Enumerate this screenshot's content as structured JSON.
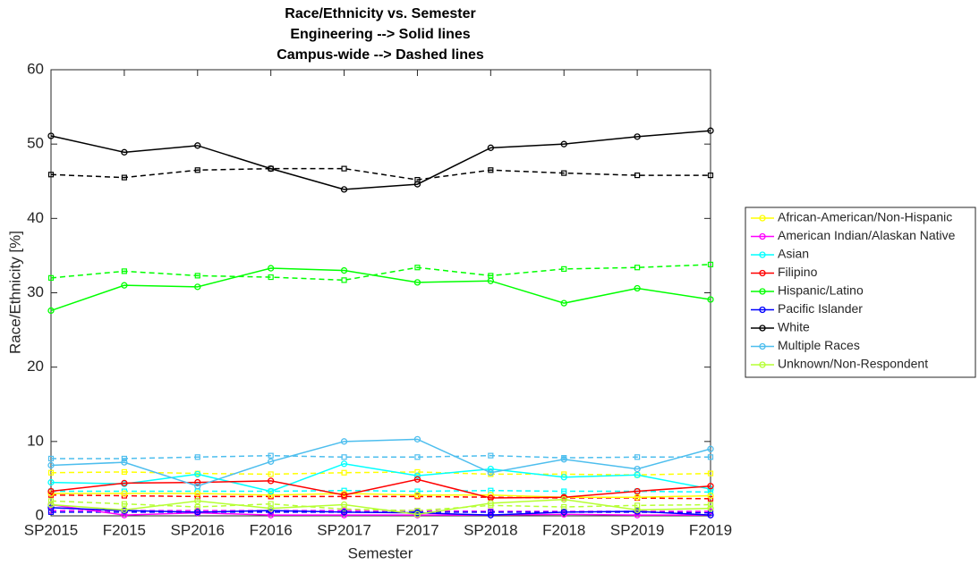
{
  "chart_data": {
    "type": "line",
    "title": [
      "Race/Ethnicity vs. Semester",
      "Engineering --> Solid lines",
      "Campus-wide --> Dashed lines"
    ],
    "xlabel": "Semester",
    "ylabel": "Race/Ethnicity [%]",
    "categories": [
      "SP2015",
      "F2015",
      "SP2016",
      "F2016",
      "SP2017",
      "F2017",
      "SP2018",
      "F2018",
      "SP2019",
      "F2019"
    ],
    "ylim": [
      0,
      60
    ],
    "yticks": [
      0,
      10,
      20,
      30,
      40,
      50,
      60
    ],
    "series": [
      {
        "name": "African-American/Non-Hispanic",
        "color": "#ffff00",
        "values": [
          3.0,
          3.0,
          3.0,
          2.8,
          3.0,
          2.8,
          2.8,
          2.5,
          2.5,
          2.7
        ],
        "campus_values": [
          5.8,
          5.9,
          5.7,
          5.6,
          5.8,
          5.9,
          5.6,
          5.6,
          5.5,
          5.7
        ]
      },
      {
        "name": "American Indian/Alaskan Native",
        "color": "#ff00ff",
        "values": [
          1.5,
          0.1,
          0.4,
          0.1,
          0.1,
          0.1,
          0.1,
          0.2,
          0.1,
          0.1
        ],
        "campus_values": [
          0.7,
          0.7,
          0.7,
          0.7,
          0.7,
          0.7,
          0.6,
          0.6,
          0.6,
          0.6
        ]
      },
      {
        "name": "Asian",
        "color": "#00ffff",
        "values": [
          4.5,
          4.3,
          5.6,
          3.3,
          7.0,
          5.4,
          6.3,
          5.2,
          5.5,
          3.6
        ],
        "campus_values": [
          3.3,
          3.3,
          3.3,
          3.3,
          3.4,
          3.3,
          3.4,
          3.3,
          3.3,
          3.2
        ]
      },
      {
        "name": "Filipino",
        "color": "#ff0000",
        "values": [
          3.3,
          4.4,
          4.5,
          4.7,
          2.8,
          4.9,
          2.4,
          2.5,
          3.3,
          4.0
        ],
        "campus_values": [
          2.8,
          2.7,
          2.6,
          2.6,
          2.6,
          2.6,
          2.5,
          2.4,
          2.4,
          2.3
        ]
      },
      {
        "name": "Hispanic/Latino",
        "color": "#00ff00",
        "values": [
          27.6,
          31.0,
          30.8,
          33.3,
          33.0,
          31.4,
          31.6,
          28.6,
          30.6,
          29.1
        ],
        "campus_values": [
          32.0,
          32.9,
          32.3,
          32.1,
          31.7,
          33.4,
          32.3,
          33.2,
          33.4,
          33.8
        ]
      },
      {
        "name": "Pacific Islander",
        "color": "#0000ff",
        "values": [
          1.1,
          0.7,
          0.5,
          0.7,
          0.5,
          0.4,
          0.1,
          0.5,
          0.6,
          0.1
        ],
        "campus_values": [
          0.5,
          0.5,
          0.5,
          0.5,
          0.5,
          0.5,
          0.5,
          0.5,
          0.5,
          0.4
        ]
      },
      {
        "name": "White",
        "color": "#000000",
        "values": [
          51.1,
          48.9,
          49.8,
          46.7,
          43.9,
          44.6,
          49.5,
          50.0,
          51.0,
          51.8
        ],
        "campus_values": [
          45.9,
          45.5,
          46.5,
          46.7,
          46.7,
          45.2,
          46.5,
          46.1,
          45.8,
          45.8
        ]
      },
      {
        "name": "Multiple Races",
        "color": "#4dbeee",
        "values": [
          6.8,
          7.2,
          4.0,
          7.3,
          10.0,
          10.3,
          5.8,
          7.6,
          6.3,
          9.0
        ],
        "campus_values": [
          7.7,
          7.7,
          7.9,
          8.1,
          7.9,
          7.9,
          8.1,
          7.8,
          7.9,
          7.9
        ]
      },
      {
        "name": "Unknown/Non-Respondent",
        "color": "#b5ff33",
        "values": [
          1.5,
          0.8,
          2.0,
          1.0,
          1.5,
          0.2,
          1.7,
          2.2,
          0.8,
          1.0
        ],
        "campus_values": [
          2.0,
          1.6,
          1.2,
          1.6,
          0.9,
          0.7,
          1.4,
          1.2,
          1.4,
          1.5
        ]
      }
    ],
    "legend": "east"
  }
}
